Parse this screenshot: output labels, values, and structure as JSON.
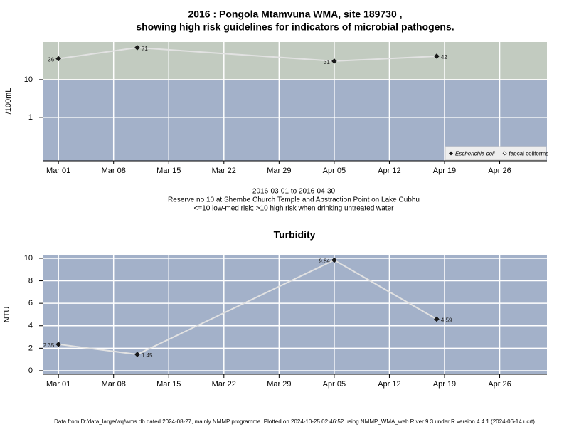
{
  "chart_data": [
    {
      "type": "line",
      "title": "2016 : Pongola Mtamvuna WMA, site 189730 ,",
      "subtitle": "showing high risk guidelines for indicators of microbial pathogens.",
      "y_label": "/100mL",
      "log_y": true,
      "guideline": 10,
      "background": "#a3b1c9",
      "above_color": "#c2cbc0",
      "line_color": "#e2e2e2",
      "grid": true,
      "legend": "bottom right",
      "x": [
        "2016-03-01",
        "2016-03-11",
        "2016-04-05",
        "2016-04-18"
      ],
      "series": [
        {
          "name": "Escherichia coli",
          "color": "#1a1a1a",
          "values": [
            36,
            71,
            31,
            42
          ]
        },
        {
          "name": "faecal coliforms",
          "color": "#ffffff",
          "values": [
            null,
            null,
            null,
            null
          ]
        }
      ],
      "xlim": [
        "2016-02-28",
        "2016-05-02"
      ],
      "ylim": [
        0.07,
        100
      ],
      "yticks": [
        1,
        10
      ],
      "xticks": [
        {
          "value": "2016-03-01",
          "label": "Mar 01"
        },
        {
          "value": "2016-03-08",
          "label": "Mar 08"
        },
        {
          "value": "2016-03-15",
          "label": "Mar 15"
        },
        {
          "value": "2016-03-22",
          "label": "Mar 22"
        },
        {
          "value": "2016-03-29",
          "label": "Mar 29"
        },
        {
          "value": "2016-04-05",
          "label": "Apr 05"
        },
        {
          "value": "2016-04-12",
          "label": "Apr 12"
        },
        {
          "value": "2016-04-19",
          "label": "Apr 19"
        },
        {
          "value": "2016-04-26",
          "label": "Apr 26"
        }
      ],
      "notes": [
        "2016-03-01 to 2016-04-30",
        "Reserve no 10 at Shembe Church Temple and Abstraction Point on Lake Cubhu",
        "<=10 low-med risk; >10 high risk when drinking untreated water"
      ]
    },
    {
      "type": "line",
      "title": "Turbidity",
      "y_label": "NTU",
      "log_y": false,
      "background": "#a3b1c9",
      "line_color": "#e2e2e2",
      "grid": true,
      "x": [
        "2016-03-01",
        "2016-03-11",
        "2016-04-05",
        "2016-04-18"
      ],
      "series": [
        {
          "name": "Turbidity",
          "color": "#1a1a1a",
          "values": [
            2.35,
            1.45,
            9.84,
            4.59
          ]
        }
      ],
      "xlim": [
        "2016-02-28",
        "2016-05-02"
      ],
      "ylim": [
        -0.32,
        10.25
      ],
      "yticks": [
        0,
        2,
        4,
        6,
        8,
        10
      ],
      "xticks": [
        {
          "value": "2016-03-01",
          "label": "Mar 01"
        },
        {
          "value": "2016-03-08",
          "label": "Mar 08"
        },
        {
          "value": "2016-03-15",
          "label": "Mar 15"
        },
        {
          "value": "2016-03-22",
          "label": "Mar 22"
        },
        {
          "value": "2016-03-29",
          "label": "Mar 29"
        },
        {
          "value": "2016-04-05",
          "label": "Apr 05"
        },
        {
          "value": "2016-04-12",
          "label": "Apr 12"
        },
        {
          "value": "2016-04-19",
          "label": "Apr 19"
        },
        {
          "value": "2016-04-26",
          "label": "Apr 26"
        }
      ]
    }
  ],
  "footer": "Data from D:/data_large/wq/wms.db dated 2024-08-27, mainly NMMP programme. Plotted on 2024-10-25 02:46:52 using NMMP_WMA_web.R ver 9.3 under R version 4.4.1 (2024-06-14 ucrt)"
}
